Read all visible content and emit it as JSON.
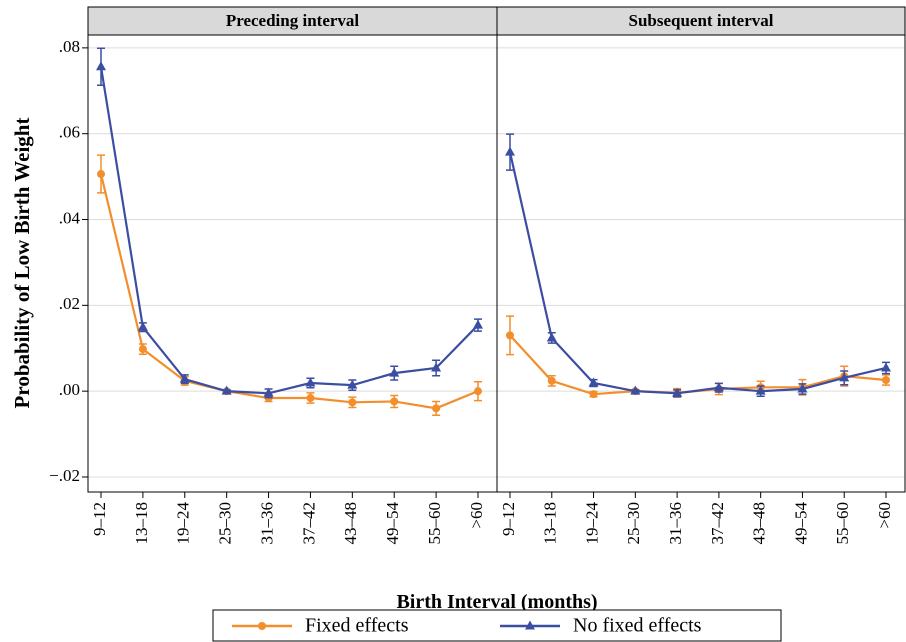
{
  "chart_data": {
    "type": "line",
    "ylabel": "Probability of Low Birth Weight",
    "xlabel": "Birth Interval (months)",
    "categories": [
      "9–12",
      "13–18",
      "19–24",
      "25–30",
      "31–36",
      "37–42",
      "43–48",
      "49–54",
      "55–60",
      ">60"
    ],
    "ylim": [
      -0.0235,
      0.083
    ],
    "yticks": [
      {
        "value": -0.02,
        "label": "−.02"
      },
      {
        "value": 0,
        "label": ".00"
      },
      {
        "value": 0.02,
        "label": ".02"
      },
      {
        "value": 0.04,
        "label": ".04"
      },
      {
        "value": 0.06,
        "label": ".06"
      },
      {
        "value": 0.08,
        "label": ".08"
      }
    ],
    "grid": true,
    "series": [
      {
        "name": "Fixed effects",
        "color": "#f28e2b",
        "marker": "circle"
      },
      {
        "name": "No fixed effects",
        "color": "#3b4ea2",
        "marker": "triangle"
      }
    ],
    "panels": [
      {
        "title": "Preceding interval",
        "series": [
          {
            "values": [
              0.0506,
              0.0098,
              0.0024,
              0,
              -0.0016,
              -0.0016,
              -0.0026,
              -0.0024,
              -0.004,
              0.0
            ],
            "errors": [
              0.0044,
              0.0012,
              0.001,
              0.0003,
              0.0008,
              0.0012,
              0.0012,
              0.0014,
              0.0016,
              0.0022
            ]
          },
          {
            "values": [
              0.0756,
              0.0149,
              0.0028,
              0,
              -0.0005,
              0.0019,
              0.0014,
              0.0042,
              0.0054,
              0.0154
            ],
            "errors": [
              0.0043,
              0.001,
              0.001,
              0.0003,
              0.001,
              0.0011,
              0.0012,
              0.0016,
              0.0018,
              0.0014
            ]
          }
        ]
      },
      {
        "title": "Subsequent interval",
        "series": [
          {
            "values": [
              0.013,
              0.0024,
              -0.0007,
              0,
              -0.0004,
              0.0005,
              0.0009,
              0.0009,
              0.0035,
              0.0026
            ],
            "errors": [
              0.0045,
              0.0012,
              0.0006,
              0.0003,
              0.001,
              0.0013,
              0.0014,
              0.0018,
              0.0023,
              0.0012
            ]
          },
          {
            "values": [
              0.0557,
              0.0124,
              0.0019,
              0,
              -0.0005,
              0.0008,
              0.0,
              0.0005,
              0.0031,
              0.0054
            ],
            "errors": [
              0.0042,
              0.0012,
              0.0008,
              0.0003,
              0.0008,
              0.001,
              0.0012,
              0.0012,
              0.0016,
              0.0013
            ]
          }
        ]
      }
    ]
  }
}
